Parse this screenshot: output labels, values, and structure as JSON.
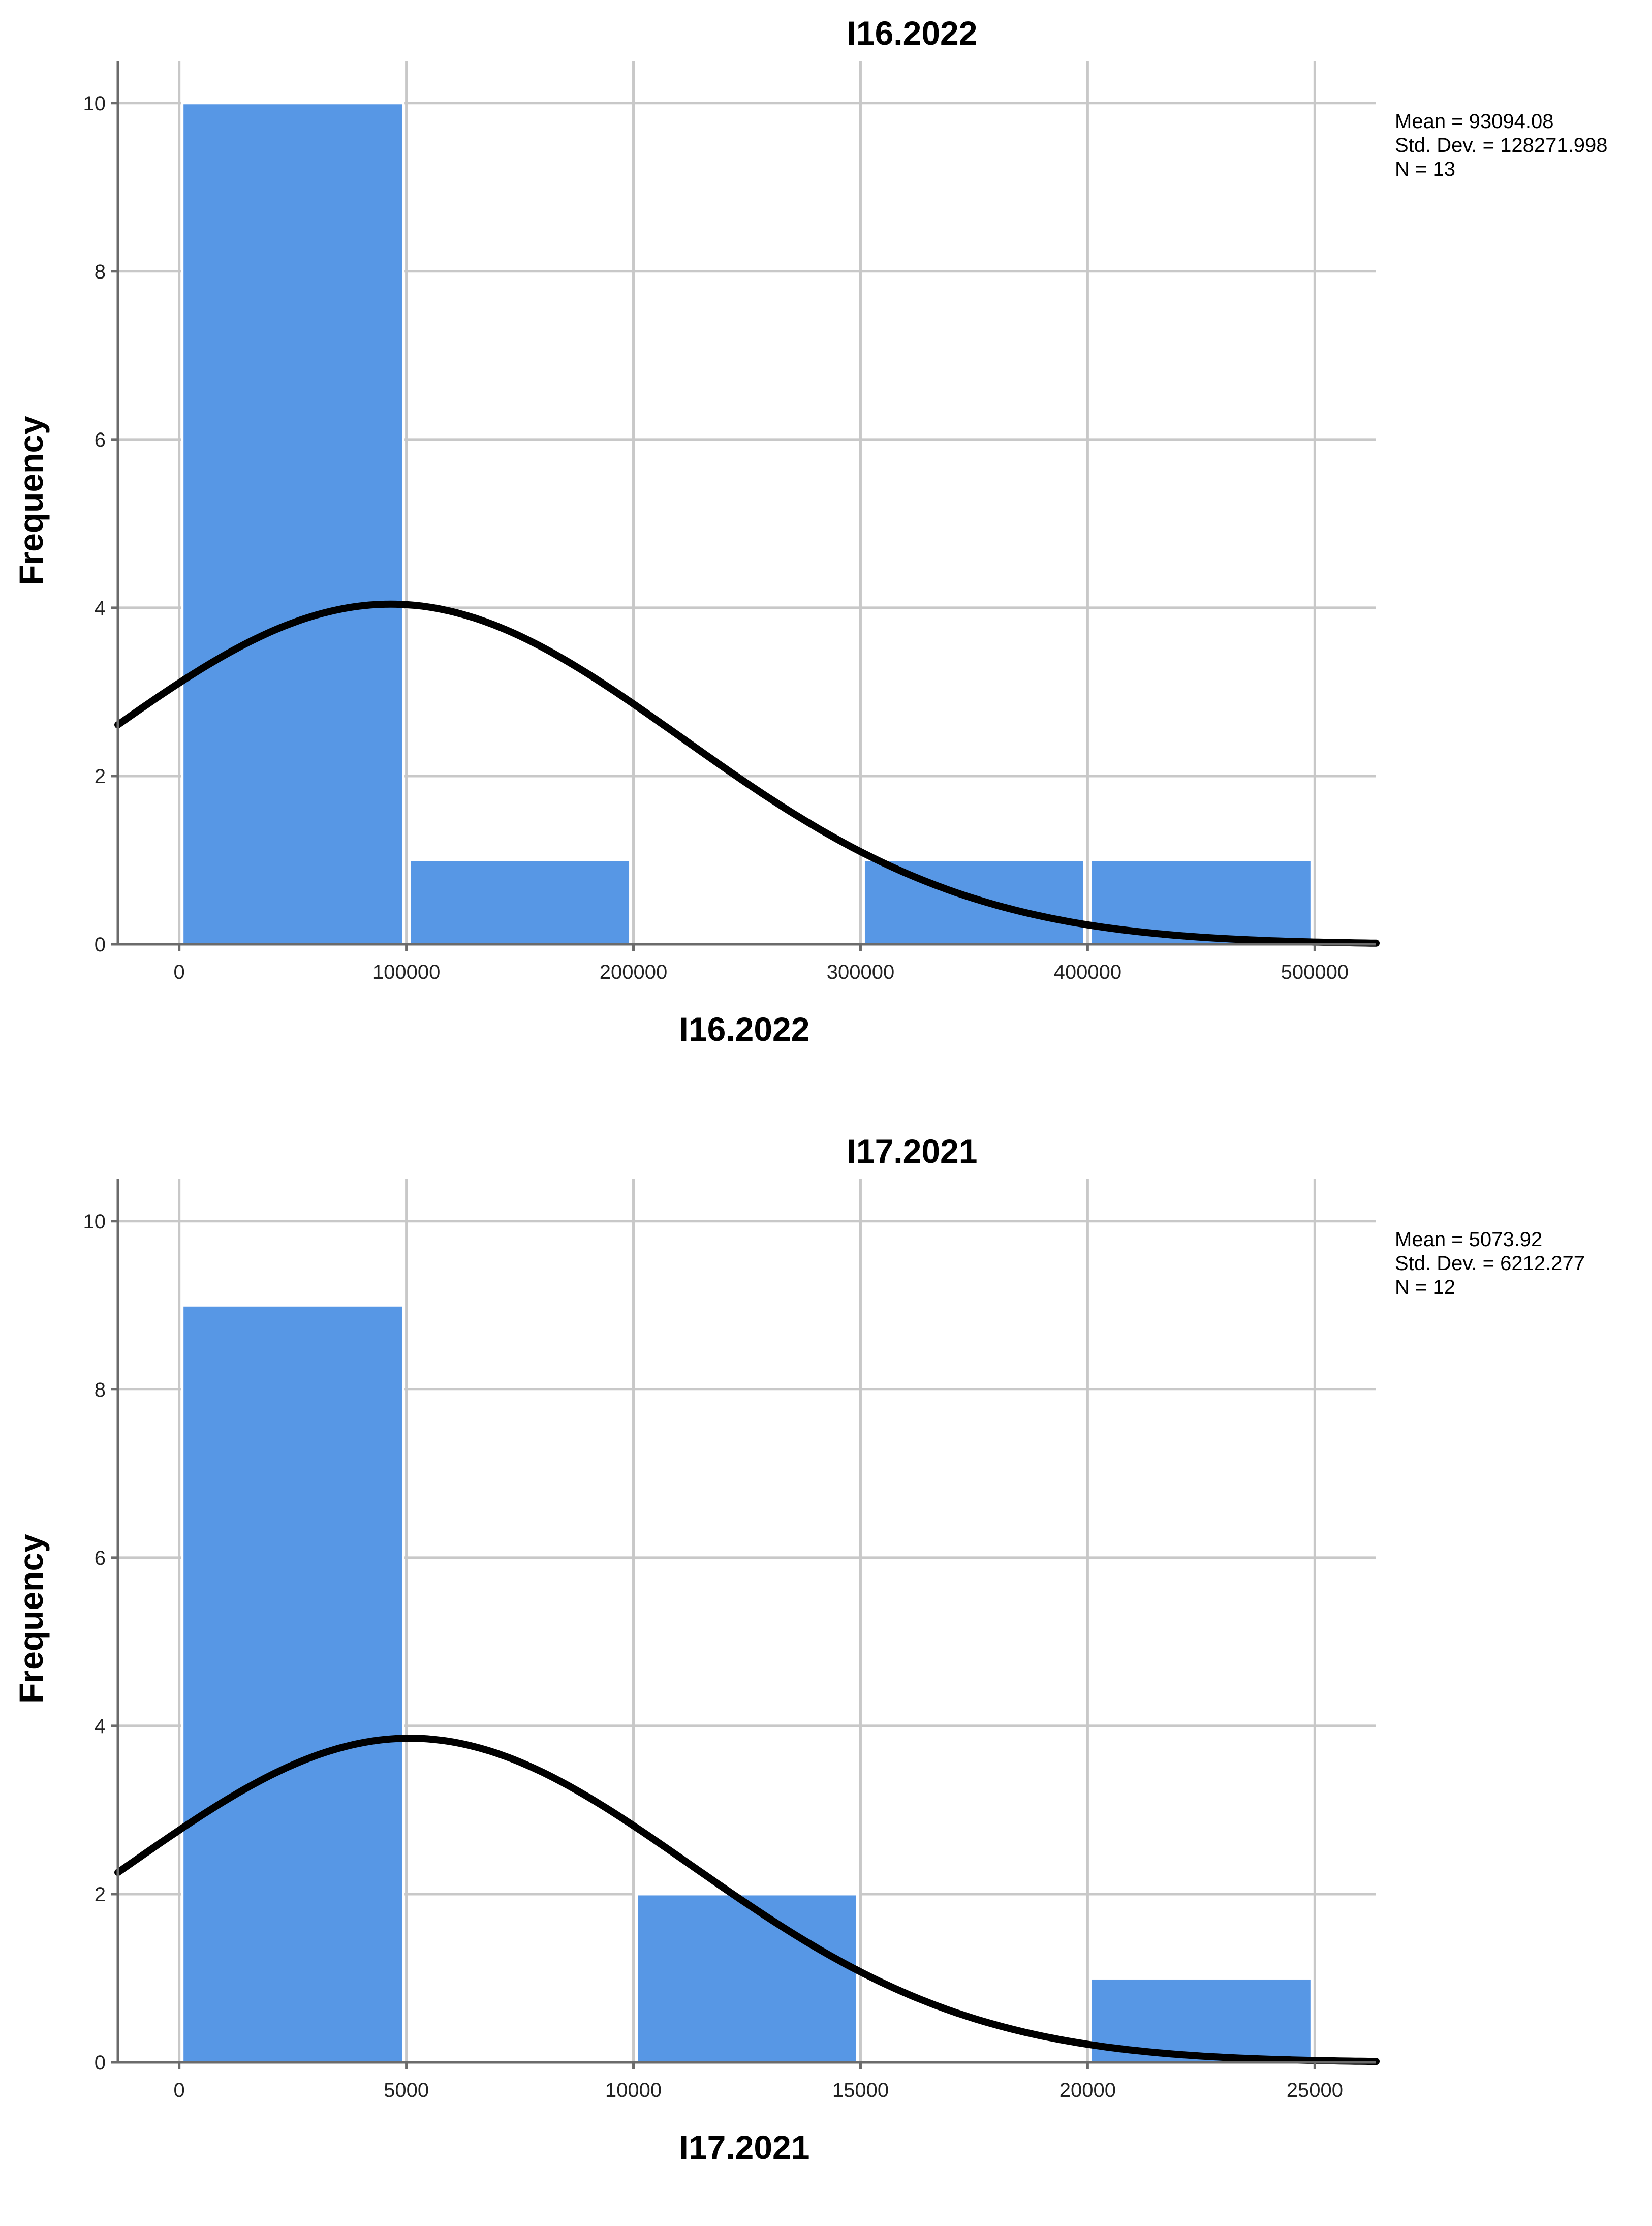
{
  "colors": {
    "bar": "#5797e5",
    "curve": "#000000",
    "grid": "#c8c8c8",
    "axis": "#6b6b6b"
  },
  "chart_data": [
    {
      "type": "bar",
      "subtype": "histogram-with-normal-curve",
      "title": "I16.2022",
      "xlabel": "I16.2022",
      "ylabel": "Frequency",
      "xlim": [
        -27000,
        527000
      ],
      "ylim": [
        0,
        10.5
      ],
      "xticks": [
        0,
        100000,
        200000,
        300000,
        400000,
        500000
      ],
      "xtick_labels": [
        "0",
        "100000",
        "200000",
        "300000",
        "400000",
        "500000"
      ],
      "yticks": [
        0,
        2,
        4,
        6,
        8,
        10
      ],
      "ytick_labels": [
        "0",
        "2",
        "4",
        "6",
        "8",
        "10"
      ],
      "grid": true,
      "bins": [
        {
          "from": 0,
          "to": 100000,
          "value": 10
        },
        {
          "from": 100000,
          "to": 200000,
          "value": 1
        },
        {
          "from": 200000,
          "to": 300000,
          "value": 0
        },
        {
          "from": 300000,
          "to": 400000,
          "value": 1
        },
        {
          "from": 400000,
          "to": 500000,
          "value": 1
        }
      ],
      "normal_curve": {
        "mean": 93094.08,
        "std": 128271.998,
        "n": 13,
        "bin_width": 100000
      },
      "stats_lines": [
        "Mean = 93094.08",
        "Std. Dev. = 128271.998",
        "N = 13"
      ]
    },
    {
      "type": "bar",
      "subtype": "histogram-with-normal-curve",
      "title": "I17.2021",
      "xlabel": "I17.2021",
      "ylabel": "Frequency",
      "xlim": [
        -1350,
        26350
      ],
      "ylim": [
        0,
        10.5
      ],
      "xticks": [
        0,
        5000,
        10000,
        15000,
        20000,
        25000
      ],
      "xtick_labels": [
        "0",
        "5000",
        "10000",
        "15000",
        "20000",
        "25000"
      ],
      "yticks": [
        0,
        2,
        4,
        6,
        8,
        10
      ],
      "ytick_labels": [
        "0",
        "2",
        "4",
        "6",
        "8",
        "10"
      ],
      "grid": true,
      "bins": [
        {
          "from": 0,
          "to": 5000,
          "value": 9
        },
        {
          "from": 5000,
          "to": 10000,
          "value": 0
        },
        {
          "from": 10000,
          "to": 15000,
          "value": 2
        },
        {
          "from": 15000,
          "to": 20000,
          "value": 0
        },
        {
          "from": 20000,
          "to": 25000,
          "value": 1
        }
      ],
      "normal_curve": {
        "mean": 5073.92,
        "std": 6212.277,
        "n": 12,
        "bin_width": 5000
      },
      "stats_lines": [
        "Mean = 5073.92",
        "Std. Dev. = 6212.277",
        "N = 12"
      ]
    }
  ]
}
